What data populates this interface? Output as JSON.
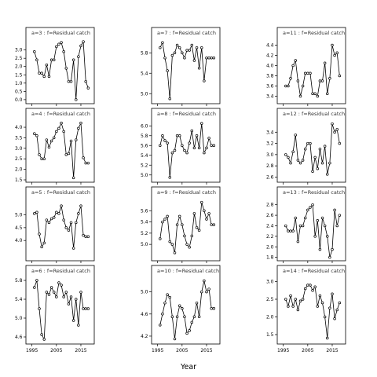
{
  "chart_data": {
    "type": "line",
    "xlabel": "Year",
    "x": [
      1996,
      1997,
      1998,
      1999,
      2000,
      2001,
      2002,
      2003,
      2004,
      2005,
      2006,
      2007,
      2008,
      2009,
      2010,
      2011,
      2012,
      2013,
      2014,
      2015,
      2016,
      2017,
      2018
    ],
    "xlim": [
      1993.5,
      2019.5
    ],
    "xticks": [
      1995,
      2005,
      2015
    ],
    "xtick_labels": [
      "1995",
      "2005",
      "2015"
    ],
    "panels": [
      {
        "strip": "a=3 : f=Residual catch",
        "ylim": [
          -0.1,
          3.6
        ],
        "yticks": [
          0.0,
          0.5,
          1.0,
          1.5,
          2.0,
          2.5,
          3.0
        ],
        "ytick_labels": [
          "0.0",
          "0.5",
          "1.0",
          "1.5",
          "2.0",
          "2.5",
          "3.0"
        ],
        "values": [
          2.9,
          2.4,
          1.6,
          1.6,
          1.4,
          2.1,
          1.4,
          2.4,
          2.4,
          3.2,
          3.35,
          3.45,
          2.9,
          1.9,
          1.1,
          1.1,
          2.4,
          0.0,
          2.6,
          3.25,
          3.5,
          1.1,
          0.7
        ]
      },
      {
        "strip": "a=4 : f=Residual catch",
        "ylim": [
          1.5,
          4.3
        ],
        "yticks": [
          1.5,
          2.0,
          2.5,
          3.0,
          3.5,
          4.0
        ],
        "ytick_labels": [
          "1.5",
          "2.0",
          "2.5",
          "3.0",
          "3.5",
          "4.0"
        ],
        "values": [
          3.7,
          3.6,
          2.7,
          2.5,
          2.5,
          3.4,
          3.05,
          3.35,
          3.5,
          3.8,
          3.95,
          4.2,
          3.8,
          2.7,
          2.75,
          3.35,
          1.6,
          3.4,
          3.95,
          4.2,
          2.55,
          2.3,
          2.3
        ]
      },
      {
        "strip": "a=5 : f=Residual catch",
        "ylim": [
          3.3,
          5.6
        ],
        "yticks": [
          4.0,
          4.5,
          5.0
        ],
        "ytick_labels": [
          "4.0",
          "4.5",
          "5.0"
        ],
        "values": [
          5.05,
          5.1,
          4.25,
          3.75,
          3.9,
          4.8,
          4.7,
          4.85,
          4.9,
          5.1,
          5.05,
          5.35,
          4.8,
          4.5,
          4.4,
          4.7,
          3.7,
          4.7,
          5.05,
          5.35,
          4.2,
          4.15,
          4.15
        ]
      },
      {
        "strip": "a=6 : f=Residual catch",
        "ylim": [
          4.5,
          5.85
        ],
        "yticks": [
          4.6,
          5.0,
          5.4,
          5.8
        ],
        "ytick_labels": [
          "4.6",
          "5.0",
          "5.4",
          "5.8"
        ],
        "values": [
          5.65,
          5.8,
          5.2,
          4.65,
          4.55,
          5.55,
          5.5,
          5.65,
          5.55,
          5.45,
          5.75,
          5.7,
          5.45,
          5.55,
          5.3,
          5.45,
          4.95,
          5.4,
          4.85,
          5.55,
          5.2,
          5.2,
          5.2
        ]
      },
      {
        "strip": "a=7 : f=Residual catch",
        "ylim": [
          4.85,
          6.05
        ],
        "yticks": [
          5.0,
          5.4,
          5.8
        ],
        "ytick_labels": [
          "5.0",
          "5.4",
          "5.8"
        ],
        "values": [
          5.9,
          6.0,
          5.7,
          5.45,
          4.9,
          5.75,
          5.8,
          5.95,
          5.9,
          5.8,
          5.7,
          5.85,
          5.85,
          5.95,
          5.65,
          5.9,
          5.5,
          5.9,
          5.25,
          5.7,
          5.7,
          5.7,
          5.7
        ]
      },
      {
        "strip": "a=8 : f=Residual catch",
        "ylim": [
          4.9,
          6.1
        ],
        "yticks": [
          5.0,
          5.2,
          5.4,
          5.6,
          5.8,
          6.0
        ],
        "ytick_labels": [
          "5.0",
          "5.2",
          "5.4",
          "5.6",
          "5.8",
          "6.0"
        ],
        "values": [
          5.6,
          5.8,
          5.7,
          5.65,
          4.95,
          5.45,
          5.5,
          5.8,
          5.8,
          5.6,
          5.5,
          5.45,
          5.65,
          5.9,
          5.55,
          5.8,
          5.55,
          6.05,
          5.45,
          5.55,
          5.75,
          5.6,
          5.6
        ]
      },
      {
        "strip": "a=9 : f=Residual catch",
        "ylim": [
          4.75,
          5.8
        ],
        "yticks": [
          5.0,
          5.2,
          5.4,
          5.6
        ],
        "ytick_labels": [
          "5.0",
          "5.2",
          "5.4",
          "5.6"
        ],
        "values": [
          5.1,
          5.4,
          5.45,
          5.5,
          5.05,
          5.0,
          4.85,
          5.35,
          5.5,
          5.35,
          5.15,
          5.0,
          4.95,
          5.15,
          5.55,
          5.3,
          5.25,
          5.75,
          5.6,
          5.45,
          5.55,
          5.35,
          5.35
        ]
      },
      {
        "strip": "a=10 : f=Residual catch",
        "ylim": [
          4.1,
          5.25
        ],
        "yticks": [
          4.2,
          4.6,
          5.0
        ],
        "ytick_labels": [
          "4.2",
          "4.6",
          "5.0"
        ],
        "values": [
          4.4,
          4.6,
          4.8,
          4.95,
          4.9,
          4.55,
          4.15,
          4.55,
          4.75,
          4.7,
          4.55,
          4.25,
          4.3,
          4.45,
          4.55,
          4.8,
          4.55,
          5.0,
          5.2,
          5.0,
          5.05,
          4.7,
          4.7
        ]
      },
      {
        "strip": "a=11 : f=Residual catch",
        "ylim": [
          3.3,
          4.5
        ],
        "yticks": [
          3.4,
          3.6,
          3.8,
          4.0,
          4.2,
          4.4
        ],
        "ytick_labels": [
          "3.4",
          "3.6",
          "3.8",
          "4.0",
          "4.2",
          "4.4"
        ],
        "values": [
          3.6,
          3.6,
          3.75,
          4.0,
          4.1,
          3.7,
          3.4,
          3.6,
          3.85,
          3.85,
          3.85,
          3.45,
          3.45,
          3.4,
          3.7,
          3.7,
          4.05,
          3.45,
          3.75,
          4.4,
          4.2,
          4.25,
          3.8
        ]
      },
      {
        "strip": "a=12 : f=Residual catch",
        "ylim": [
          2.55,
          3.6
        ],
        "yticks": [
          2.6,
          2.8,
          3.0,
          3.2,
          3.4
        ],
        "ytick_labels": [
          "2.6",
          "2.8",
          "3.0",
          "3.2",
          "3.4"
        ],
        "values": [
          3.0,
          2.95,
          2.85,
          3.05,
          3.35,
          2.9,
          2.85,
          2.9,
          3.1,
          3.2,
          3.2,
          2.7,
          2.95,
          2.75,
          3.1,
          2.85,
          3.15,
          2.65,
          2.85,
          3.55,
          3.4,
          3.45,
          3.2
        ]
      },
      {
        "strip": "a=13 : f=Residual catch",
        "ylim": [
          1.78,
          2.9
        ],
        "yticks": [
          1.8,
          2.0,
          2.2,
          2.4,
          2.6,
          2.8
        ],
        "ytick_labels": [
          "1.8",
          "2.0",
          "2.2",
          "2.4",
          "2.6",
          "2.8"
        ],
        "values": [
          2.4,
          2.3,
          2.3,
          2.3,
          2.55,
          2.1,
          2.4,
          2.4,
          2.55,
          2.7,
          2.75,
          2.8,
          2.2,
          2.5,
          1.95,
          2.55,
          2.4,
          2.2,
          1.8,
          1.95,
          2.7,
          2.4,
          2.6
        ]
      },
      {
        "strip": "a=14 : f=Residual catch",
        "ylim": [
          1.3,
          3.1
        ],
        "yticks": [
          1.5,
          2.0,
          2.5,
          3.0
        ],
        "ytick_labels": [
          "1.5",
          "2.0",
          "2.5",
          "3.0"
        ],
        "values": [
          2.5,
          2.3,
          2.6,
          2.3,
          2.5,
          2.2,
          2.45,
          2.5,
          2.8,
          2.9,
          2.9,
          2.75,
          2.85,
          2.3,
          2.6,
          2.4,
          2.0,
          1.4,
          2.25,
          2.65,
          1.95,
          2.2,
          2.4
        ]
      }
    ]
  }
}
